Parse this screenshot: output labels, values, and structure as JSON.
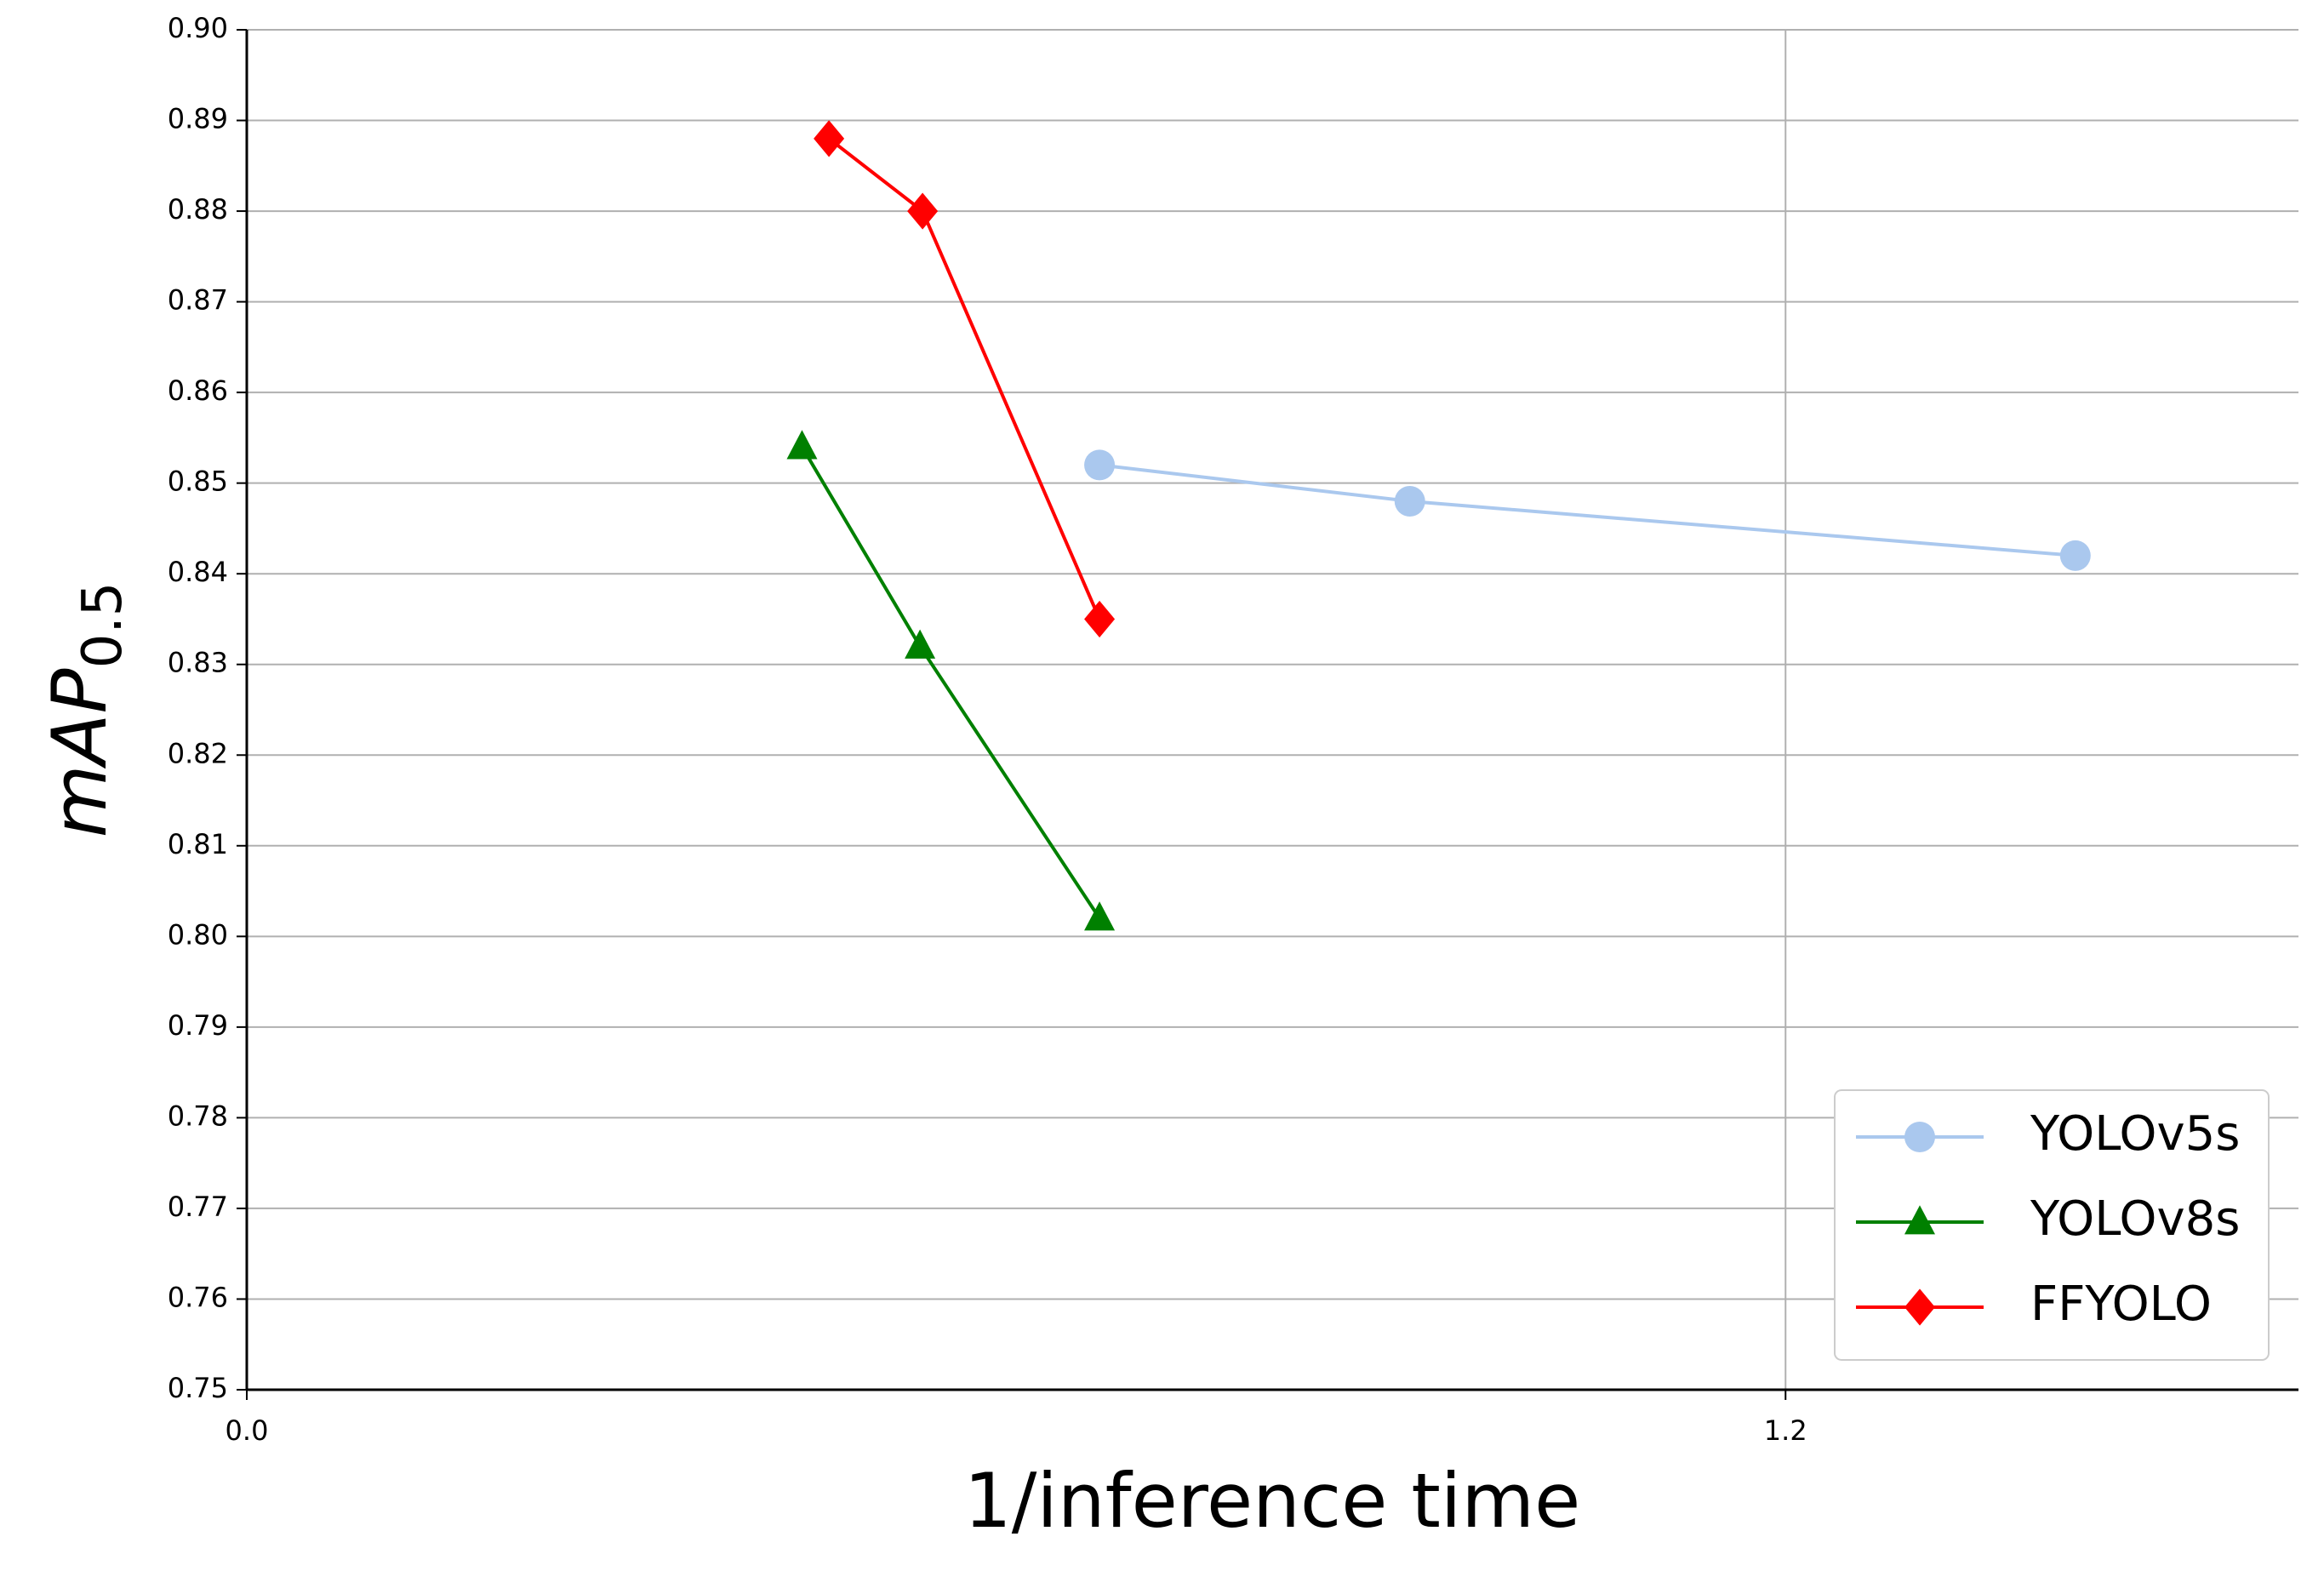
{
  "chart_data": {
    "type": "line",
    "xlabel": "1/inference time",
    "ylabel": "mAP",
    "ylabel_sub": "0.5",
    "xlim": [
      0,
      1.6
    ],
    "ylim": [
      0.75,
      0.9
    ],
    "xticks": [
      {
        "value": 0,
        "label": "0.0"
      },
      1.2
    ],
    "yticks": [
      0.75,
      0.76,
      0.77,
      0.78,
      0.79,
      {
        "value": 0.8,
        "label": "0.80"
      },
      0.81,
      0.82,
      0.83,
      0.84,
      0.85,
      0.86,
      0.87,
      0.88,
      0.89,
      {
        "value": 0.9,
        "label": "0.90"
      }
    ],
    "grid": true,
    "legend": "lower right",
    "series": [
      {
        "name": "YOLOv5s",
        "color": "#aac8ee",
        "marker": "circle",
        "x": [
          0.665,
          0.907,
          1.426
        ],
        "values": [
          0.852,
          0.848,
          0.842
        ]
      },
      {
        "name": "YOLOv8s",
        "color": "#008000",
        "marker": "triangle",
        "x": [
          0.433,
          0.525,
          0.665
        ],
        "values": [
          0.854,
          0.832,
          0.802
        ]
      },
      {
        "name": "FFYOLO",
        "color": "#ff0000",
        "marker": "diamond",
        "x": [
          0.454,
          0.527,
          0.665
        ],
        "values": [
          0.888,
          0.88,
          0.835
        ]
      }
    ]
  }
}
